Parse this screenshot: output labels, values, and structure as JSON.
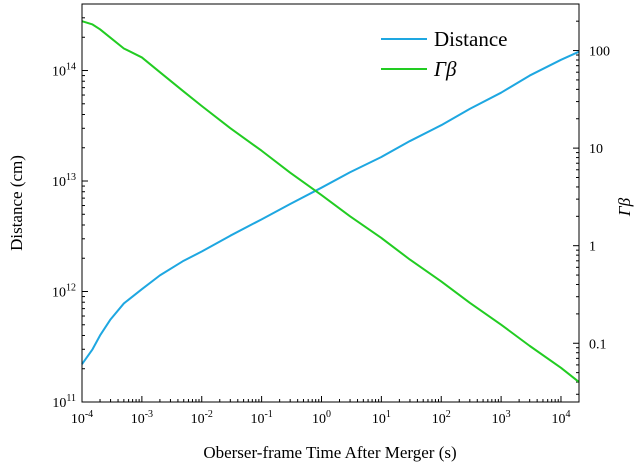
{
  "chart_data": {
    "type": "line",
    "xlabel": "Oberser-frame Time After Merger (s)",
    "ylabel": "Distance (cm)",
    "y2label": "Γβ",
    "x_scale": "log",
    "y_scale": "log",
    "y2_scale": "log",
    "xlim": [
      0.0001,
      20000
    ],
    "ylim": [
      100000000000,
      400000000000000
    ],
    "y2lim": [
      0.025,
      300
    ],
    "grid": false,
    "legend_position": "top-right",
    "x_ticks": [
      {
        "value": 0.0001,
        "base": "10",
        "exp": "-4"
      },
      {
        "value": 0.001,
        "base": "10",
        "exp": "-3"
      },
      {
        "value": 0.01,
        "base": "10",
        "exp": "-2"
      },
      {
        "value": 0.1,
        "base": "10",
        "exp": "-1"
      },
      {
        "value": 1,
        "base": "10",
        "exp": "0"
      },
      {
        "value": 10,
        "base": "10",
        "exp": "1"
      },
      {
        "value": 100,
        "base": "10",
        "exp": "2"
      },
      {
        "value": 1000,
        "base": "10",
        "exp": "3"
      },
      {
        "value": 10000,
        "base": "10",
        "exp": "4"
      }
    ],
    "y_ticks": [
      {
        "value": 100000000000,
        "base": "10",
        "exp": "11"
      },
      {
        "value": 1000000000000,
        "base": "10",
        "exp": "12"
      },
      {
        "value": 10000000000000,
        "base": "10",
        "exp": "13"
      },
      {
        "value": 100000000000000,
        "base": "10",
        "exp": "14"
      }
    ],
    "y2_ticks": [
      {
        "value": 0.1,
        "label": "0.1"
      },
      {
        "value": 1,
        "label": "1"
      },
      {
        "value": 10,
        "label": "10"
      },
      {
        "value": 100,
        "label": "100"
      }
    ],
    "series": [
      {
        "name": "Distance",
        "axis": "left",
        "color": "#1ea7e1",
        "x": [
          0.0001,
          0.00015,
          0.0002,
          0.0003,
          0.0005,
          0.001,
          0.002,
          0.005,
          0.01,
          0.03,
          0.1,
          0.3,
          1,
          3,
          10,
          30,
          100,
          300,
          1000,
          3000,
          10000,
          20000
        ],
        "y": [
          220000000000,
          300000000000,
          400000000000,
          560000000000,
          780000000000,
          1050000000000,
          1400000000000,
          1900000000000,
          2300000000000,
          3200000000000,
          4500000000000,
          6200000000000,
          8700000000000,
          12000000000000,
          16500000000000,
          23000000000000,
          32000000000000,
          45000000000000,
          63000000000000,
          90000000000000,
          125000000000000,
          148000000000000
        ]
      },
      {
        "name": "Γβ",
        "axis": "right",
        "color": "#22cc22",
        "x": [
          0.0001,
          0.00015,
          0.0002,
          0.0003,
          0.0005,
          0.001,
          0.002,
          0.005,
          0.01,
          0.03,
          0.1,
          0.3,
          1,
          3,
          10,
          30,
          100,
          300,
          1000,
          3000,
          10000,
          20000
        ],
        "y": [
          200,
          185,
          165,
          135,
          105,
          85,
          60,
          38,
          27,
          16,
          9.4,
          5.6,
          3.3,
          2,
          1.2,
          0.72,
          0.43,
          0.26,
          0.155,
          0.094,
          0.056,
          0.04
        ]
      }
    ]
  }
}
